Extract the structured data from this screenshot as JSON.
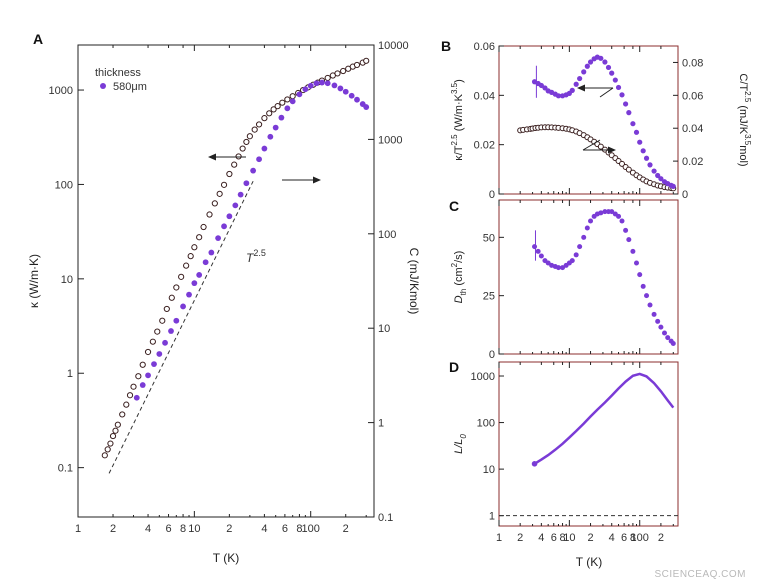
{
  "watermark": "SCIENCEAQ.COM",
  "colors": {
    "kappa": "#7a3bd6",
    "heat": "#3a1f1f",
    "axis": "#222222",
    "frame_right": "#8b2d2d"
  },
  "chart_data": [
    {
      "panel": "A",
      "type": "scatter",
      "xscale": "log",
      "yscale": "log",
      "y2scale": "log",
      "xlim": [
        1,
        350
      ],
      "ylim": [
        0.03,
        3000
      ],
      "y2lim": [
        0.1,
        10000
      ],
      "xlabel": "T (K)",
      "ylabel": "κ (W/m·K)",
      "y2label": "C (mJ/Kmol)",
      "x_ticks": [
        "1",
        "2",
        "4",
        "6",
        "8",
        "10",
        "2",
        "4",
        "6",
        "8",
        "100",
        "2"
      ],
      "y_ticks": [
        "0.1",
        "1",
        "10",
        "100",
        "1000"
      ],
      "y2_ticks": [
        "0.1",
        "1",
        "10",
        "100",
        "1000",
        "10000"
      ],
      "legend": {
        "title": "thickness",
        "entry": "580μm",
        "placement": "top-left"
      },
      "annotation_power": "T",
      "annotation_exp": "2.5",
      "series": [
        {
          "name": "κ",
          "axis": "left",
          "marker": "filled",
          "x": [
            3.2,
            3.6,
            4,
            4.5,
            5,
            5.6,
            6.3,
            7,
            8,
            9,
            10,
            11,
            12.5,
            14,
            16,
            18,
            20,
            22.5,
            25,
            28,
            32,
            36,
            40,
            45,
            50,
            56,
            63,
            70,
            80,
            90,
            100,
            112,
            125,
            140,
            160,
            180,
            200,
            225,
            250,
            280,
            300
          ],
          "y": [
            0.55,
            0.75,
            0.95,
            1.25,
            1.6,
            2.1,
            2.8,
            3.6,
            5.1,
            6.8,
            9,
            11,
            15,
            19,
            27,
            36,
            46,
            60,
            78,
            103,
            140,
            185,
            240,
            320,
            400,
            510,
            640,
            760,
            900,
            1020,
            1110,
            1180,
            1200,
            1180,
            1120,
            1040,
            960,
            870,
            790,
            710,
            660
          ]
        },
        {
          "name": "C",
          "axis": "right",
          "marker": "open",
          "x": [
            1.7,
            1.8,
            1.9,
            2,
            2.1,
            2.2,
            2.4,
            2.6,
            2.8,
            3,
            3.3,
            3.6,
            4,
            4.4,
            4.8,
            5.3,
            5.8,
            6.4,
            7,
            7.7,
            8.5,
            9.3,
            10,
            11,
            12,
            13.5,
            15,
            16.5,
            18,
            20,
            22,
            24,
            26,
            28,
            30,
            33,
            36,
            40,
            44,
            48,
            52,
            57,
            63,
            70,
            78,
            86,
            95,
            105,
            115,
            125,
            140,
            155,
            170,
            190,
            210,
            230,
            250,
            280,
            300
          ],
          "y": [
            0.45,
            0.52,
            0.6,
            0.72,
            0.82,
            0.95,
            1.22,
            1.55,
            1.95,
            2.4,
            3.1,
            4.1,
            5.6,
            7.2,
            9.2,
            12,
            16,
            21,
            27,
            35,
            46,
            58,
            72,
            92,
            118,
            160,
            210,
            265,
            330,
            430,
            540,
            660,
            800,
            940,
            1080,
            1270,
            1440,
            1680,
            1890,
            2080,
            2250,
            2450,
            2650,
            2870,
            3100,
            3330,
            3560,
            3790,
            4000,
            4200,
            4480,
            4750,
            5000,
            5300,
            5600,
            5900,
            6150,
            6500,
            6800
          ]
        }
      ]
    },
    {
      "panel": "B",
      "type": "scatter",
      "xscale": "log",
      "xlim": [
        1,
        350
      ],
      "ylim": [
        0,
        0.06
      ],
      "y2lim": [
        0,
        0.09
      ],
      "ylabel_main": "κ/T",
      "ylabel_exp": "2.5",
      "ylabel_unit": " (W/m·K",
      "ylabel_unit_exp": "3.5",
      "ylabel_close": ")",
      "y2label_main": "C/T",
      "y2label_exp": "2.5",
      "y2label_unit": " (mJ/K",
      "y2label_unit_exp": "3.5",
      "y2label_close": "mol)",
      "y_ticks": [
        "0",
        "0.02",
        "0.04",
        "0.06"
      ],
      "y2_ticks": [
        "0",
        "0.02",
        "0.04",
        "0.06",
        "0.08"
      ],
      "series": [
        {
          "name": "κ/T^2.5",
          "axis": "left",
          "marker": "filled",
          "x": [
            3.2,
            3.6,
            4,
            4.5,
            5,
            5.6,
            6.3,
            7,
            8,
            9,
            10,
            11,
            12.5,
            14,
            16,
            18,
            20,
            22.5,
            25,
            28,
            32,
            36,
            40,
            45,
            50,
            56,
            63,
            70,
            80,
            90,
            100,
            112,
            125,
            140,
            160,
            180,
            200,
            225,
            250,
            280,
            300
          ],
          "y": [
            0.0455,
            0.0448,
            0.044,
            0.043,
            0.0418,
            0.0412,
            0.0405,
            0.0398,
            0.0398,
            0.0402,
            0.0408,
            0.042,
            0.0445,
            0.0468,
            0.0495,
            0.0518,
            0.0535,
            0.0548,
            0.0555,
            0.055,
            0.0535,
            0.0513,
            0.049,
            0.0462,
            0.0432,
            0.0402,
            0.0365,
            0.033,
            0.0285,
            0.025,
            0.021,
            0.0175,
            0.0145,
            0.0118,
            0.0093,
            0.0075,
            0.0062,
            0.005,
            0.0042,
            0.0035,
            0.0031
          ]
        },
        {
          "name": "C/T^2.5",
          "axis": "right",
          "marker": "open",
          "x": [
            2,
            2.2,
            2.5,
            2.8,
            3,
            3.3,
            3.6,
            4,
            4.5,
            5,
            5.6,
            6.3,
            7,
            8,
            9,
            10,
            11,
            12.5,
            14,
            16,
            18,
            20,
            22.5,
            25,
            28,
            32,
            36,
            40,
            45,
            50,
            56,
            63,
            70,
            80,
            90,
            100,
            112,
            125,
            140,
            160,
            180,
            200,
            225,
            250,
            280,
            300
          ],
          "y": [
            0.0387,
            0.039,
            0.0393,
            0.0396,
            0.0398,
            0.0401,
            0.0403,
            0.0405,
            0.0406,
            0.0406,
            0.0405,
            0.0404,
            0.0402,
            0.04,
            0.0397,
            0.0393,
            0.0388,
            0.038,
            0.037,
            0.0358,
            0.0345,
            0.0332,
            0.0318,
            0.0303,
            0.0288,
            0.027,
            0.0252,
            0.0236,
            0.0218,
            0.0201,
            0.0183,
            0.0164,
            0.0148,
            0.013,
            0.0114,
            0.0101,
            0.0088,
            0.0077,
            0.0068,
            0.0059,
            0.0052,
            0.0047,
            0.0042,
            0.0039,
            0.0036,
            0.0034
          ]
        }
      ]
    },
    {
      "panel": "C",
      "type": "scatter",
      "xscale": "log",
      "xlim": [
        1,
        350
      ],
      "ylim": [
        0,
        66
      ],
      "ylabel_main": "D",
      "ylabel_sub": "th",
      "ylabel_unit": " (cm",
      "ylabel_unit_exp": "2",
      "ylabel_close": "/s)",
      "y_ticks": [
        "0",
        "25",
        "50"
      ],
      "series": [
        {
          "name": "D_th",
          "axis": "left",
          "marker": "filled",
          "x": [
            3.2,
            3.6,
            4,
            4.5,
            5,
            5.6,
            6.3,
            7,
            8,
            9,
            10,
            11,
            12.5,
            14,
            16,
            18,
            20,
            22.5,
            25,
            28,
            32,
            36,
            40,
            45,
            50,
            56,
            63,
            70,
            80,
            90,
            100,
            112,
            125,
            140,
            160,
            180,
            200,
            225,
            250,
            280,
            300
          ],
          "y": [
            46,
            44,
            42,
            40,
            39,
            38,
            37.5,
            37,
            37,
            38,
            39,
            40,
            42.5,
            46,
            50,
            54,
            57,
            59,
            60,
            60.5,
            61,
            61,
            61,
            60,
            59,
            57,
            53,
            49,
            44,
            39,
            34,
            29,
            25,
            21,
            17,
            14,
            11.5,
            9,
            7,
            5.5,
            4.5
          ]
        }
      ]
    },
    {
      "panel": "D",
      "type": "line",
      "xscale": "log",
      "yscale": "log",
      "xlim": [
        1,
        350
      ],
      "ylim": [
        0.6,
        2000
      ],
      "xlabel": "T (K)",
      "ylabel_main": "L/L",
      "ylabel_sub": "0",
      "x_ticks": [
        "1",
        "2",
        "4",
        "6",
        "8",
        "10",
        "2",
        "4",
        "6",
        "8",
        "100",
        "2"
      ],
      "y_ticks": [
        "1",
        "10",
        "100",
        "1000"
      ],
      "reference_line": 1,
      "series": [
        {
          "name": "L/L0",
          "axis": "left",
          "marker": "filled",
          "x": [
            3.2,
            4,
            5,
            6.3,
            8,
            10,
            12.5,
            16,
            20,
            25,
            32,
            40,
            50,
            63,
            80,
            100,
            125,
            160,
            200,
            250,
            300
          ],
          "y": [
            13,
            16,
            20,
            26,
            35,
            48,
            66,
            95,
            135,
            190,
            270,
            380,
            540,
            760,
            1010,
            1110,
            980,
            700,
            470,
            300,
            210
          ]
        }
      ]
    }
  ]
}
